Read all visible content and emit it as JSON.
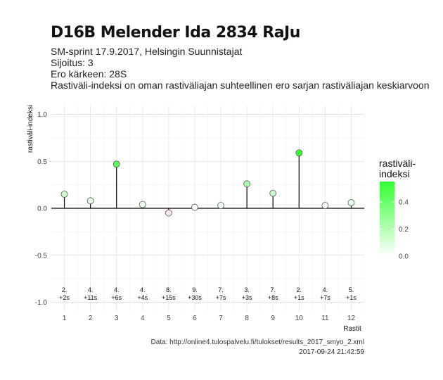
{
  "header": {
    "title": "D16B Melender Ida 2834 RaJu",
    "line1": "SM-sprint 17.9.2017, Helsingin Suunnistajat",
    "line2": "Sijoitus: 3",
    "line3": "Ero kärkeen: 28S",
    "line4": "Rastiväli-indeksi on oman rastiväliajan suhteellinen ero sarjan rastiväliajan keskiarvoon"
  },
  "footer": {
    "source": "Data: http://online4.tulospalvelu.fi/tulokset/results_2017_smyo_2.xml",
    "timestamp": "2017-09-24 21:42:59"
  },
  "chart_data": {
    "type": "scatter",
    "xlabel": "Rastit",
    "ylabel": "rastiväli-indeksi",
    "x": [
      1,
      2,
      3,
      4,
      5,
      6,
      7,
      8,
      9,
      10,
      11,
      12
    ],
    "values": [
      0.15,
      0.08,
      0.47,
      0.04,
      -0.05,
      0.01,
      0.03,
      0.26,
      0.16,
      0.59,
      0.03,
      0.06
    ],
    "rank_labels": [
      "2.",
      "4.",
      "4.",
      "4.",
      "8.",
      "9.",
      "7.",
      "3.",
      "7.",
      "2.",
      "4.",
      "5."
    ],
    "diff_labels": [
      "+2s",
      "+11s",
      "+6s",
      "+4s",
      "+15s",
      "+30s",
      "+7s",
      "+3s",
      "+8s",
      "+1s",
      "+7s",
      "+1s"
    ],
    "xlim": [
      0.5,
      12.5
    ],
    "ylim": [
      -1.0,
      1.0
    ],
    "yticks": [
      -1.0,
      -0.5,
      0.0,
      0.5,
      1.0
    ],
    "ytick_labels": [
      "-1.0",
      "-0.5",
      "0.0",
      "0.5",
      "1.0"
    ],
    "grid": true,
    "legend": {
      "title_line1": "rastiväli-",
      "title_line2": "indeksi",
      "position": "right",
      "ticks": [
        0.0,
        0.2,
        0.4
      ],
      "tick_labels": [
        "0.0",
        "0.2",
        "0.4"
      ],
      "low_color": "#ffffff",
      "high_color": "#33ff33",
      "negative_color": "#ff9999"
    }
  }
}
